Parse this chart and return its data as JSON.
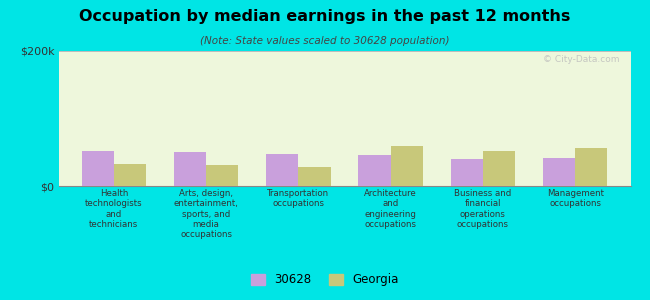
{
  "title": "Occupation by median earnings in the past 12 months",
  "subtitle": "(Note: State values scaled to 30628 population)",
  "background_color": "#00e5e5",
  "plot_bg_color": "#eef7dc",
  "categories": [
    "Health\ntechnologists\nand\ntechnicians",
    "Arts, design,\nentertainment,\nsports, and\nmedia\noccupations",
    "Transportation\noccupations",
    "Architecture\nand\nengineering\noccupations",
    "Business and\nfinancial\noperations\noccupations",
    "Management\noccupations"
  ],
  "values_30628": [
    52000,
    50000,
    47000,
    46000,
    40000,
    41000
  ],
  "values_georgia": [
    33000,
    31000,
    28000,
    60000,
    52000,
    57000
  ],
  "color_30628": "#c9a0dc",
  "color_georgia": "#c8c87a",
  "ylim": [
    0,
    200000
  ],
  "ytick_labels": [
    "$0",
    "$200k"
  ],
  "legend_labels": [
    "30628",
    "Georgia"
  ],
  "bar_width": 0.35,
  "watermark": "© City-Data.com"
}
